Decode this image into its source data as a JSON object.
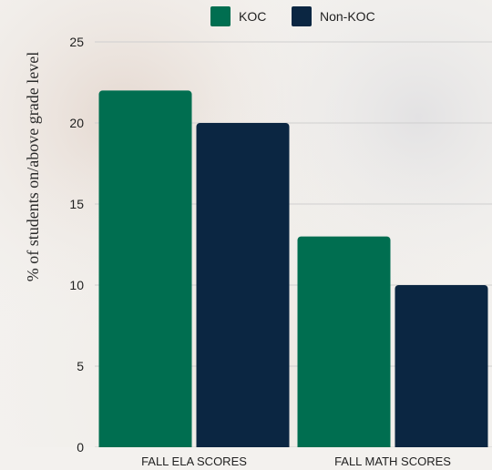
{
  "chart_data": {
    "type": "bar",
    "title": "",
    "xlabel": "",
    "ylabel": "% of students on/above grade level",
    "categories": [
      "FALL ELA SCORES",
      "FALL MATH SCORES"
    ],
    "series": [
      {
        "name": "KOC",
        "values": [
          22,
          13
        ],
        "color": "#006e50"
      },
      {
        "name": "Non-KOC",
        "values": [
          20,
          10
        ],
        "color": "#0b2642"
      }
    ],
    "ylim": [
      0,
      25
    ],
    "yticks": [
      0,
      5,
      10,
      15,
      20,
      25
    ],
    "grid": true,
    "legend_position": "top-center"
  }
}
